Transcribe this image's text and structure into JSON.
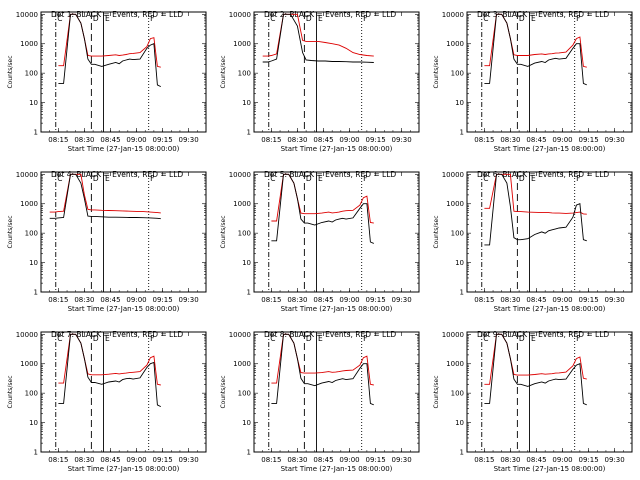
{
  "chart_data": {
    "type": "line",
    "layout": "3x3 grid",
    "xlabel": "Start Time (27-Jan-15 08:00:00)",
    "ylabel": "Counts/sec",
    "x_ticks": [
      "08:15",
      "08:30",
      "08:45",
      "09:00",
      "09:15",
      "09:30"
    ],
    "x_range_min": [
      5,
      100
    ],
    "y_scale": "log",
    "ylim": [
      1,
      12000
    ],
    "y_ticks": [
      "1",
      "10",
      "100",
      "1000",
      "10000"
    ],
    "legend_text": "BLACK = Events, RED = LLD",
    "series_colors": {
      "events": "#000000",
      "lld": "#dd0000"
    },
    "marker_labels": [
      "C",
      "D",
      "E",
      "F"
    ],
    "marker_times_min": [
      13.5,
      34,
      41,
      67
    ],
    "panels": [
      {
        "title": "Det 1",
        "x": [
          10,
          13,
          15,
          18,
          22,
          25,
          28,
          30,
          32,
          34,
          36,
          40,
          44,
          48,
          50,
          52,
          54,
          56,
          58,
          62,
          66,
          68,
          70,
          72,
          74
        ],
        "events": [
          null,
          null,
          45,
          45,
          10000,
          10000,
          5000,
          1500,
          300,
          200,
          200,
          170,
          200,
          230,
          210,
          260,
          280,
          300,
          290,
          300,
          700,
          900,
          1000,
          40,
          35
        ],
        "lld": [
          null,
          null,
          180,
          180,
          10000,
          10000,
          5000,
          1500,
          400,
          380,
          380,
          380,
          400,
          420,
          400,
          410,
          430,
          460,
          470,
          500,
          800,
          1500,
          1600,
          170,
          160
        ]
      },
      {
        "title": "Det 2",
        "x": [
          10,
          13,
          15,
          18,
          22,
          26,
          30,
          33,
          35,
          38,
          42,
          46,
          50,
          54,
          58,
          62,
          66,
          70,
          74
        ],
        "events": [
          240,
          240,
          260,
          300,
          10000,
          10000,
          4000,
          500,
          280,
          270,
          260,
          260,
          250,
          250,
          245,
          240,
          240,
          235,
          230
        ],
        "lld": [
          380,
          380,
          400,
          450,
          10000,
          10000,
          10000,
          1300,
          1200,
          1200,
          1200,
          1100,
          1000,
          900,
          700,
          500,
          430,
          400,
          380
        ]
      },
      {
        "title": "Det 3",
        "x": [
          10,
          13,
          15,
          18,
          22,
          25,
          28,
          30,
          32,
          34,
          36,
          40,
          44,
          48,
          50,
          52,
          54,
          56,
          58,
          62,
          66,
          68,
          70,
          72,
          74
        ],
        "events": [
          null,
          null,
          45,
          45,
          10000,
          10000,
          5000,
          1500,
          300,
          200,
          200,
          170,
          220,
          250,
          230,
          280,
          300,
          320,
          300,
          320,
          700,
          1000,
          1000,
          45,
          40
        ],
        "lld": [
          null,
          null,
          180,
          180,
          10000,
          10000,
          5000,
          1500,
          420,
          400,
          400,
          400,
          430,
          450,
          430,
          450,
          460,
          480,
          490,
          520,
          900,
          1500,
          1700,
          170,
          160
        ]
      },
      {
        "title": "Det 4",
        "x": [
          10,
          13,
          15,
          18,
          22,
          25,
          28,
          30,
          32,
          34,
          36,
          40,
          44,
          48,
          52,
          56,
          60,
          64,
          68,
          72,
          74
        ],
        "events": [
          320,
          320,
          330,
          340,
          10000,
          10000,
          5000,
          1500,
          380,
          370,
          370,
          360,
          350,
          350,
          345,
          340,
          340,
          335,
          330,
          320,
          310
        ],
        "lld": [
          520,
          520,
          540,
          560,
          10000,
          10000,
          10000,
          2000,
          650,
          620,
          620,
          600,
          590,
          580,
          570,
          560,
          550,
          540,
          520,
          500,
          490
        ]
      },
      {
        "title": "Det 5",
        "x": [
          10,
          13,
          15,
          18,
          22,
          25,
          28,
          30,
          32,
          34,
          36,
          40,
          44,
          48,
          50,
          52,
          54,
          56,
          58,
          62,
          66,
          68,
          70,
          72,
          74
        ],
        "events": [
          null,
          null,
          55,
          55,
          10000,
          10000,
          5000,
          1500,
          300,
          220,
          220,
          190,
          230,
          260,
          240,
          280,
          300,
          320,
          300,
          330,
          700,
          1000,
          1000,
          50,
          45
        ],
        "lld": [
          null,
          null,
          260,
          260,
          10000,
          10000,
          5000,
          1500,
          480,
          460,
          460,
          460,
          480,
          520,
          490,
          500,
          520,
          560,
          580,
          600,
          900,
          1600,
          1800,
          230,
          220
        ]
      },
      {
        "title": "Det 6",
        "x": [
          10,
          13,
          15,
          18,
          22,
          25,
          28,
          30,
          32,
          34,
          36,
          40,
          44,
          48,
          50,
          52,
          54,
          56,
          58,
          62,
          66,
          68,
          70,
          72,
          74
        ],
        "events": [
          null,
          null,
          40,
          40,
          10000,
          10000,
          5000,
          800,
          70,
          60,
          60,
          65,
          90,
          110,
          100,
          120,
          130,
          140,
          150,
          160,
          350,
          900,
          1000,
          60,
          55
        ],
        "lld": [
          null,
          null,
          700,
          700,
          10000,
          10000,
          10000,
          10000,
          560,
          540,
          540,
          520,
          510,
          500,
          500,
          500,
          490,
          480,
          480,
          470,
          480,
          500,
          520,
          450,
          440
        ]
      },
      {
        "title": "Det 7",
        "x": [
          10,
          13,
          15,
          18,
          22,
          25,
          28,
          30,
          32,
          34,
          36,
          40,
          44,
          48,
          50,
          52,
          54,
          56,
          58,
          62,
          66,
          68,
          70,
          72,
          74
        ],
        "events": [
          null,
          null,
          45,
          45,
          10000,
          10000,
          5000,
          1500,
          350,
          230,
          230,
          200,
          240,
          260,
          240,
          290,
          310,
          320,
          300,
          330,
          750,
          1000,
          1100,
          40,
          35
        ],
        "lld": [
          null,
          null,
          220,
          220,
          10000,
          10000,
          5000,
          1500,
          450,
          420,
          420,
          420,
          440,
          470,
          450,
          470,
          480,
          500,
          510,
          540,
          900,
          1600,
          1800,
          200,
          190
        ]
      },
      {
        "title": "Det 8",
        "x": [
          10,
          13,
          15,
          18,
          22,
          25,
          28,
          30,
          32,
          34,
          36,
          40,
          44,
          48,
          50,
          52,
          54,
          56,
          58,
          62,
          66,
          68,
          70,
          72,
          74
        ],
        "events": [
          null,
          null,
          45,
          45,
          10000,
          10000,
          5000,
          1500,
          320,
          210,
          210,
          180,
          220,
          250,
          230,
          270,
          290,
          310,
          290,
          310,
          700,
          1000,
          1000,
          45,
          40
        ],
        "lld": [
          null,
          null,
          220,
          220,
          10000,
          10000,
          5000,
          1500,
          500,
          480,
          480,
          480,
          500,
          540,
          510,
          520,
          540,
          570,
          590,
          610,
          900,
          1600,
          1800,
          200,
          190
        ]
      },
      {
        "title": "Det 9",
        "x": [
          10,
          13,
          15,
          18,
          22,
          25,
          28,
          30,
          32,
          34,
          36,
          40,
          44,
          48,
          50,
          52,
          54,
          56,
          58,
          62,
          66,
          68,
          70,
          72,
          74
        ],
        "events": [
          null,
          null,
          45,
          45,
          10000,
          10000,
          5000,
          1500,
          300,
          200,
          200,
          170,
          210,
          240,
          220,
          260,
          280,
          300,
          290,
          300,
          650,
          900,
          1000,
          45,
          40
        ],
        "lld": [
          null,
          null,
          200,
          200,
          10000,
          10000,
          5000,
          1500,
          430,
          410,
          410,
          410,
          430,
          460,
          440,
          450,
          460,
          480,
          490,
          520,
          850,
          1500,
          1700,
          320,
          300
        ]
      }
    ]
  }
}
